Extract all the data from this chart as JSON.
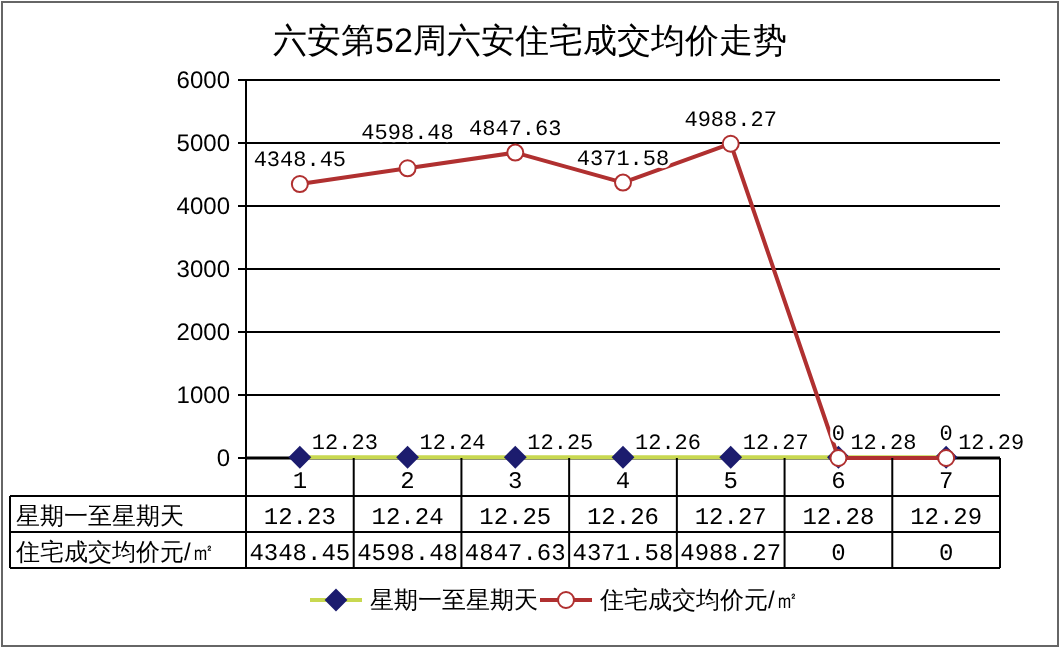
{
  "chart_data": {
    "type": "line",
    "title": "六安第52周六安住宅成交均价走势",
    "categories": [
      "1",
      "2",
      "3",
      "4",
      "5",
      "6",
      "7"
    ],
    "series": [
      {
        "name": "星期一至星期天",
        "color": "#c8d850",
        "colors": [
          "#1c1c6e",
          "#1c1c6e",
          "#1c1c6e",
          "#1c1c6e",
          "#1c1c6e",
          "#1c1c6e",
          "#1c1c6e"
        ],
        "marker": "diamond",
        "values": [
          12.23,
          12.24,
          12.25,
          12.26,
          12.27,
          12.28,
          12.29
        ]
      },
      {
        "name": "住宅成交均价元/㎡",
        "color": "#b03030",
        "marker": "circle",
        "values": [
          4348.45,
          4598.48,
          4847.63,
          4371.58,
          4988.27,
          0,
          0
        ]
      }
    ],
    "ylim": [
      0,
      6000
    ],
    "yticks": [
      0,
      1000,
      2000,
      3000,
      4000,
      5000,
      6000
    ],
    "grid": "y",
    "legend": "bottom",
    "data_labels": true,
    "annotations": [
      "12.23",
      "12.24",
      "12.25",
      "12.26",
      "12.27",
      "12.28",
      "12.29",
      "4348.45",
      "4598.48",
      "4847.63",
      "4371.58",
      "4988.27",
      "0",
      "0"
    ]
  }
}
